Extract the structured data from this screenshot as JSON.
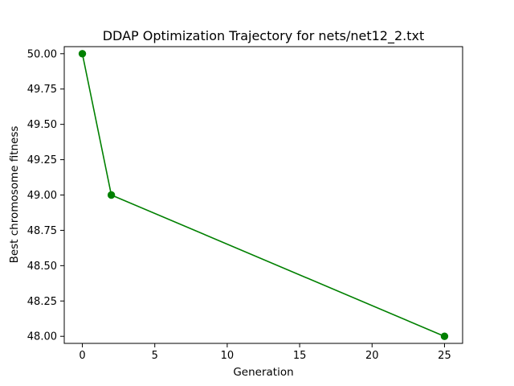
{
  "chart_data": {
    "type": "line",
    "title": "DDAP Optimization Trajectory for nets/net12_2.txt",
    "xlabel": "Generation",
    "ylabel": "Best chromosome fitness",
    "xlim": [
      -1.25,
      26.25
    ],
    "ylim": [
      47.95,
      50.05
    ],
    "x_ticks": [
      0,
      5,
      10,
      15,
      20,
      25
    ],
    "x_tick_labels": [
      "0",
      "5",
      "10",
      "15",
      "20",
      "25"
    ],
    "y_ticks": [
      48.0,
      48.25,
      48.5,
      48.75,
      49.0,
      49.25,
      49.5,
      49.75,
      50.0
    ],
    "y_tick_labels": [
      "48.00",
      "48.25",
      "48.50",
      "48.75",
      "49.00",
      "49.25",
      "49.50",
      "49.75",
      "50.00"
    ],
    "grid": false,
    "series": [
      {
        "color": "#008000",
        "marker": "circle",
        "points": [
          {
            "x": 0,
            "y": 50.0
          },
          {
            "x": 2,
            "y": 49.0
          },
          {
            "x": 25,
            "y": 48.0
          }
        ]
      }
    ]
  }
}
